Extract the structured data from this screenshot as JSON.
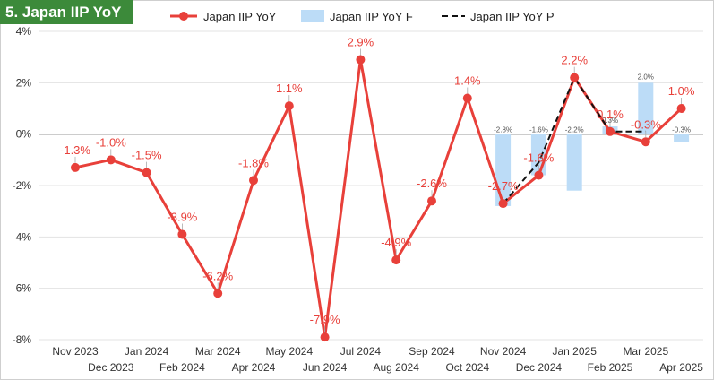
{
  "chart_data": {
    "type": "line",
    "title": "5. Japan IIP YoY",
    "colors": {
      "actual": "#e8403a",
      "forecast": "#bcdcf7",
      "preliminary": "#111111",
      "title_bg": "#3c8a3a"
    },
    "categories": [
      "Nov 2023",
      "Dec 2023",
      "Jan 2024",
      "Feb 2024",
      "Mar 2024",
      "Apr 2024",
      "May 2024",
      "Jun 2024",
      "Jul 2024",
      "Aug 2024",
      "Sep 2024",
      "Oct 2024",
      "Nov 2024",
      "Dec 2024",
      "Jan 2025",
      "Feb 2025",
      "Mar 2025",
      "Apr 2025"
    ],
    "ylim": [
      -8,
      4
    ],
    "yticks": [
      4,
      2,
      0,
      -2,
      -4,
      -6,
      -8
    ],
    "ytick_labels": [
      "4%",
      "2%",
      "0%",
      "-2%",
      "-4%",
      "-6%",
      "-8%"
    ],
    "legend_position": "top",
    "series": [
      {
        "name": "Japan IIP YoY",
        "type": "line",
        "values": [
          -1.3,
          -1.0,
          -1.5,
          -3.9,
          -6.2,
          -1.8,
          1.1,
          -7.9,
          2.9,
          -4.9,
          -2.6,
          1.4,
          -2.7,
          -1.6,
          2.2,
          0.1,
          -0.3,
          1.0
        ],
        "labels": [
          "-1.3%",
          "-1.0%",
          "-1.5%",
          "-3.9%",
          "-6.2%",
          "-1.8%",
          "1.1%",
          "-7.9%",
          "2.9%",
          "-4.9%",
          "-2.6%",
          "1.4%",
          "-2.7%",
          "-1.6%",
          "2.2%",
          "0.1%",
          "-0.3%",
          "1.0%"
        ]
      },
      {
        "name": "Japan IIP YoY F",
        "type": "bar",
        "values": [
          null,
          null,
          null,
          null,
          null,
          null,
          null,
          null,
          null,
          null,
          null,
          null,
          -2.8,
          -1.6,
          -2.2,
          0.3,
          2.0,
          -0.3
        ],
        "labels": [
          null,
          null,
          null,
          null,
          null,
          null,
          null,
          null,
          null,
          null,
          null,
          null,
          "-2.8%",
          "-1.6%",
          "-2.2%",
          "0.3%",
          "2.0%",
          "-0.3%"
        ]
      },
      {
        "name": "Japan IIP YoY P",
        "type": "line-dashed",
        "values": [
          null,
          null,
          null,
          null,
          null,
          null,
          null,
          null,
          null,
          null,
          null,
          null,
          -2.7,
          -1.1,
          2.2,
          0.1,
          0.1,
          null
        ]
      }
    ]
  }
}
